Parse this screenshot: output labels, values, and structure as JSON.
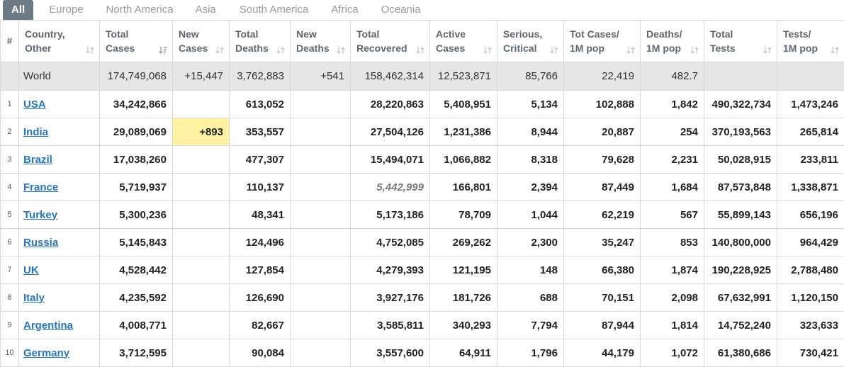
{
  "tabs": [
    {
      "label": "All",
      "active": true
    },
    {
      "label": "Europe",
      "active": false
    },
    {
      "label": "North America",
      "active": false
    },
    {
      "label": "Asia",
      "active": false
    },
    {
      "label": "South America",
      "active": false
    },
    {
      "label": "Africa",
      "active": false
    },
    {
      "label": "Oceania",
      "active": false
    }
  ],
  "headers": [
    "#",
    "Country,\nOther",
    "Total\nCases",
    "New\nCases",
    "Total\nDeaths",
    "New\nDeaths",
    "Total\nRecovered",
    "Active\nCases",
    "Serious,\nCritical",
    "Tot Cases/\n1M pop",
    "Deaths/\n1M pop",
    "Total\nTests",
    "Tests/\n1M pop"
  ],
  "world": {
    "country": "World",
    "total_cases": "174,749,068",
    "new_cases": "+15,447",
    "total_deaths": "3,762,883",
    "new_deaths": "+541",
    "total_recovered": "158,462,314",
    "active_cases": "12,523,871",
    "serious": "85,766",
    "cases_per_1m": "22,419",
    "deaths_per_1m": "482.7",
    "total_tests": "",
    "tests_per_1m": ""
  },
  "rows": [
    {
      "num": "1",
      "country": "USA",
      "total_cases": "34,242,866",
      "new_cases": "",
      "total_deaths": "613,052",
      "new_deaths": "",
      "total_recovered": "28,220,863",
      "active_cases": "5,408,951",
      "serious": "5,134",
      "cases_per_1m": "102,888",
      "deaths_per_1m": "1,842",
      "total_tests": "490,322,734",
      "tests_per_1m": "1,473,246"
    },
    {
      "num": "2",
      "country": "India",
      "total_cases": "29,089,069",
      "new_cases": "+893",
      "total_deaths": "353,557",
      "new_deaths": "",
      "total_recovered": "27,504,126",
      "active_cases": "1,231,386",
      "serious": "8,944",
      "cases_per_1m": "20,887",
      "deaths_per_1m": "254",
      "total_tests": "370,193,563",
      "tests_per_1m": "265,814"
    },
    {
      "num": "3",
      "country": "Brazil",
      "total_cases": "17,038,260",
      "new_cases": "",
      "total_deaths": "477,307",
      "new_deaths": "",
      "total_recovered": "15,494,071",
      "active_cases": "1,066,882",
      "serious": "8,318",
      "cases_per_1m": "79,628",
      "deaths_per_1m": "2,231",
      "total_tests": "50,028,915",
      "tests_per_1m": "233,811"
    },
    {
      "num": "4",
      "country": "France",
      "total_cases": "5,719,937",
      "new_cases": "",
      "total_deaths": "110,137",
      "new_deaths": "",
      "total_recovered": "5,442,999",
      "active_cases": "166,801",
      "serious": "2,394",
      "cases_per_1m": "87,449",
      "deaths_per_1m": "1,684",
      "total_tests": "87,573,848",
      "tests_per_1m": "1,338,871"
    },
    {
      "num": "5",
      "country": "Turkey",
      "total_cases": "5,300,236",
      "new_cases": "",
      "total_deaths": "48,341",
      "new_deaths": "",
      "total_recovered": "5,173,186",
      "active_cases": "78,709",
      "serious": "1,044",
      "cases_per_1m": "62,219",
      "deaths_per_1m": "567",
      "total_tests": "55,899,143",
      "tests_per_1m": "656,196"
    },
    {
      "num": "6",
      "country": "Russia",
      "total_cases": "5,145,843",
      "new_cases": "",
      "total_deaths": "124,496",
      "new_deaths": "",
      "total_recovered": "4,752,085",
      "active_cases": "269,262",
      "serious": "2,300",
      "cases_per_1m": "35,247",
      "deaths_per_1m": "853",
      "total_tests": "140,800,000",
      "tests_per_1m": "964,429"
    },
    {
      "num": "7",
      "country": "UK",
      "total_cases": "4,528,442",
      "new_cases": "",
      "total_deaths": "127,854",
      "new_deaths": "",
      "total_recovered": "4,279,393",
      "active_cases": "121,195",
      "serious": "148",
      "cases_per_1m": "66,380",
      "deaths_per_1m": "1,874",
      "total_tests": "190,228,925",
      "tests_per_1m": "2,788,480"
    },
    {
      "num": "8",
      "country": "Italy",
      "total_cases": "4,235,592",
      "new_cases": "",
      "total_deaths": "126,690",
      "new_deaths": "",
      "total_recovered": "3,927,176",
      "active_cases": "181,726",
      "serious": "688",
      "cases_per_1m": "70,151",
      "deaths_per_1m": "2,098",
      "total_tests": "67,632,991",
      "tests_per_1m": "1,120,150"
    },
    {
      "num": "9",
      "country": "Argentina",
      "total_cases": "4,008,771",
      "new_cases": "",
      "total_deaths": "82,667",
      "new_deaths": "",
      "total_recovered": "3,585,811",
      "active_cases": "340,293",
      "serious": "7,794",
      "cases_per_1m": "87,944",
      "deaths_per_1m": "1,814",
      "total_tests": "14,752,240",
      "tests_per_1m": "323,633"
    },
    {
      "num": "10",
      "country": "Germany",
      "total_cases": "3,712,595",
      "new_cases": "",
      "total_deaths": "90,084",
      "new_deaths": "",
      "total_recovered": "3,557,600",
      "active_cases": "64,911",
      "serious": "1,796",
      "cases_per_1m": "44,179",
      "deaths_per_1m": "1,072",
      "total_tests": "61,380,686",
      "tests_per_1m": "730,421"
    }
  ],
  "colors": {
    "active_tab_bg": "#6d7b86",
    "header_text": "#5e6770",
    "world_row_bg": "#e6e6e6",
    "link": "#2b75b6",
    "new_cases_highlight": "#fff3a3",
    "border": "#d8d8d8"
  },
  "icons": {
    "sort": "sort-arrows-icon",
    "sort_active": "sort-desc-icon"
  }
}
